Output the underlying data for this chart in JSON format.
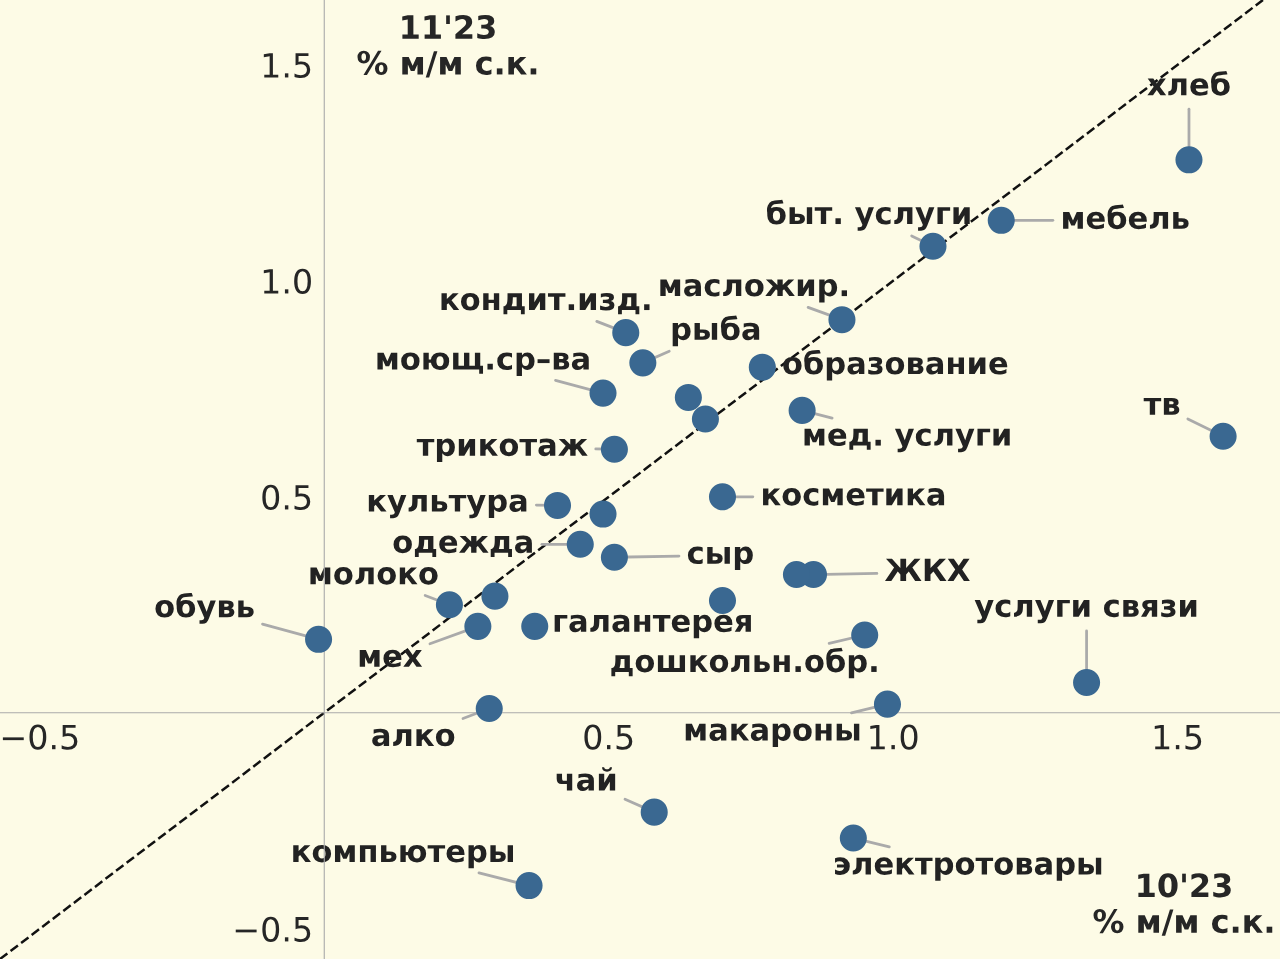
{
  "chart_data": {
    "type": "scatter",
    "xlabel": "10'23\n% м/м с.к.",
    "ylabel": "11'23\n% м/м с.к.",
    "xlim": [
      -0.57,
      1.68
    ],
    "ylim": [
      -0.57,
      1.65
    ],
    "xticks": [
      {
        "value": -0.5,
        "label": "−0.5"
      },
      0.5,
      {
        "value": 1,
        "label": "1.0"
      },
      1.5
    ],
    "yticks": [
      {
        "value": -0.5,
        "label": "−0.5"
      },
      0.5,
      {
        "value": 1,
        "label": "1.0"
      },
      1.5
    ],
    "grid": false,
    "marker": "circle",
    "series": [
      {
        "type": "scatter",
        "color": "#3a6891",
        "x": [
          1.52,
          1.19,
          1.07,
          0.91,
          0.53,
          0.56,
          0.77,
          0.49,
          0.64,
          0.67,
          0.84,
          1.58,
          0.51,
          0.7,
          0.41,
          0.49,
          0.45,
          0.51,
          0.86,
          0.83,
          0.22,
          0.3,
          0.7,
          -0.01,
          0.27,
          0.37,
          0.95,
          1.34,
          0.99,
          0.29,
          0.58,
          0.93,
          0.36
        ],
        "values": [
          1.28,
          1.14,
          1.08,
          0.91,
          0.88,
          0.81,
          0.8,
          0.74,
          0.73,
          0.68,
          0.7,
          0.64,
          0.61,
          0.5,
          0.48,
          0.46,
          0.39,
          0.36,
          0.32,
          0.32,
          0.25,
          0.27,
          0.26,
          0.17,
          0.2,
          0.2,
          0.18,
          0.07,
          0.02,
          0.01,
          -0.23,
          -0.29,
          -0.4
        ]
      },
      {
        "type": "line",
        "color": "#111111",
        "line_style": "dashed",
        "marker": "none",
        "x": [
          -0.57,
          1.65
        ],
        "values": [
          -0.57,
          1.65
        ]
      }
    ],
    "annotations": [
      {
        "text": "хлеб",
        "x": 1.52,
        "y": 1.28
      },
      {
        "text": "мебель",
        "x": 1.19,
        "y": 1.14
      },
      {
        "text": "быт. услуги",
        "x": 1.07,
        "y": 1.08
      },
      {
        "text": "масложир.",
        "x": 0.91,
        "y": 0.91
      },
      {
        "text": "кондит.изд.",
        "x": 0.53,
        "y": 0.88
      },
      {
        "text": "рыба",
        "x": 0.56,
        "y": 0.81
      },
      {
        "text": "образование",
        "x": 0.77,
        "y": 0.8
      },
      {
        "text": "моющ.ср–ва",
        "x": 0.49,
        "y": 0.74
      },
      {
        "text": "мед. услуги",
        "x": 0.84,
        "y": 0.7
      },
      {
        "text": "тв",
        "x": 1.58,
        "y": 0.64
      },
      {
        "text": "трикотаж",
        "x": 0.51,
        "y": 0.61
      },
      {
        "text": "косметика",
        "x": 0.7,
        "y": 0.5
      },
      {
        "text": "культура",
        "x": 0.41,
        "y": 0.48
      },
      {
        "text": "одежда",
        "x": 0.45,
        "y": 0.39
      },
      {
        "text": "сыр",
        "x": 0.51,
        "y": 0.36
      },
      {
        "text": "ЖКХ",
        "x": 0.86,
        "y": 0.32
      },
      {
        "text": "молоко",
        "x": 0.22,
        "y": 0.25
      },
      {
        "text": "обувь",
        "x": -0.01,
        "y": 0.17
      },
      {
        "text": "мех",
        "x": 0.27,
        "y": 0.2
      },
      {
        "text": "галантерея",
        "x": 0.37,
        "y": 0.2
      },
      {
        "text": "дошкольн.обр.",
        "x": 0.95,
        "y": 0.18
      },
      {
        "text": "услуги связи",
        "x": 1.34,
        "y": 0.07
      },
      {
        "text": "макароны",
        "x": 0.99,
        "y": 0.02
      },
      {
        "text": "алко",
        "x": 0.29,
        "y": 0.01
      },
      {
        "text": "чай",
        "x": 0.58,
        "y": -0.23
      },
      {
        "text": "электротовары",
        "x": 0.93,
        "y": -0.29
      },
      {
        "text": "компьютеры",
        "x": 0.36,
        "y": -0.4
      }
    ]
  }
}
